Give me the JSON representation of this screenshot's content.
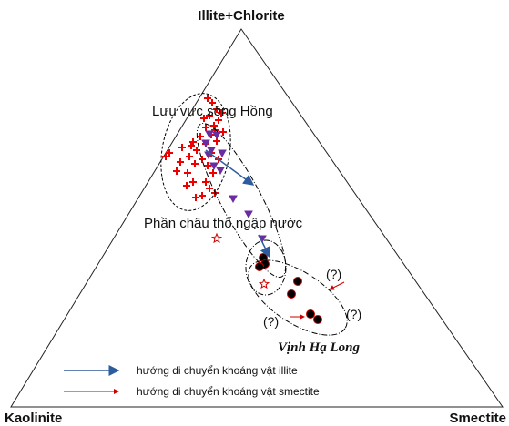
{
  "axes": {
    "top": "Illite+Chlorite",
    "left": "Kaolinite",
    "right": "Smectite"
  },
  "regions": {
    "river": "Lưu vực sông Hồng",
    "delta": "Phần châu thổ ngập nước",
    "bay": "Vịnh Hạ Long"
  },
  "uncertain": [
    "(?)",
    "(?)",
    "(?)"
  ],
  "legend": {
    "illite": "hướng di chuyển khoáng vật illite",
    "smectite": "hướng di chuyển khoáng vật smectite"
  }
}
